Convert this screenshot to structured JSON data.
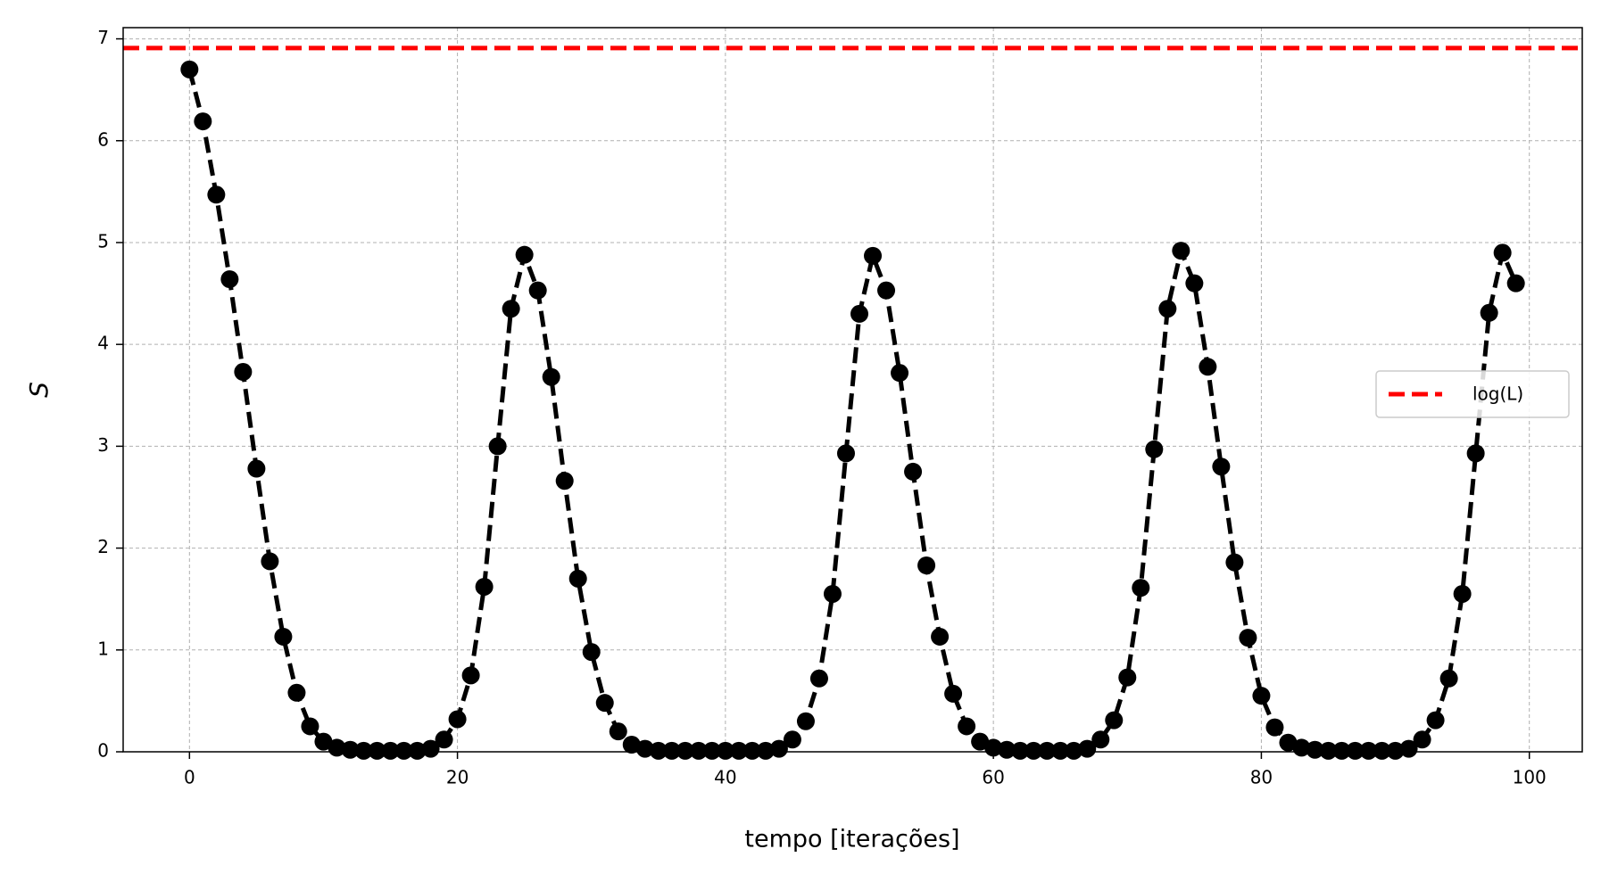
{
  "chart_data": {
    "type": "line",
    "xlabel": "tempo [iterações]",
    "ylabel": "S",
    "x": [
      0,
      1,
      2,
      3,
      4,
      5,
      6,
      7,
      8,
      9,
      10,
      11,
      12,
      13,
      14,
      15,
      16,
      17,
      18,
      19,
      20,
      21,
      22,
      23,
      24,
      25,
      26,
      27,
      28,
      29,
      30,
      31,
      32,
      33,
      34,
      35,
      36,
      37,
      38,
      39,
      40,
      41,
      42,
      43,
      44,
      45,
      46,
      47,
      48,
      49,
      50,
      51,
      52,
      53,
      54,
      55,
      56,
      57,
      58,
      59,
      60,
      61,
      62,
      63,
      64,
      65,
      66,
      67,
      68,
      69,
      70,
      71,
      72,
      73,
      74,
      75,
      76,
      77,
      78,
      79,
      80,
      81,
      82,
      83,
      84,
      85,
      86,
      87,
      88,
      89,
      90,
      91,
      92,
      93,
      94,
      95,
      96,
      97,
      98,
      99
    ],
    "series": [
      {
        "color": "#000000",
        "values": [
          6.7,
          6.19,
          5.47,
          4.64,
          3.73,
          2.78,
          1.87,
          1.13,
          0.58,
          0.25,
          0.1,
          0.04,
          0.02,
          0.01,
          0.01,
          0.01,
          0.01,
          0.01,
          0.03,
          0.12,
          0.32,
          0.75,
          1.62,
          3.0,
          4.35,
          4.88,
          4.53,
          3.68,
          2.66,
          1.7,
          0.98,
          0.48,
          0.2,
          0.07,
          0.03,
          0.01,
          0.01,
          0.01,
          0.01,
          0.01,
          0.01,
          0.01,
          0.01,
          0.01,
          0.03,
          0.12,
          0.3,
          0.72,
          1.55,
          2.93,
          4.3,
          4.87,
          4.53,
          3.72,
          2.75,
          1.83,
          1.13,
          0.57,
          0.25,
          0.1,
          0.04,
          0.02,
          0.01,
          0.01,
          0.01,
          0.01,
          0.01,
          0.03,
          0.12,
          0.31,
          0.73,
          1.61,
          2.97,
          4.35,
          4.92,
          4.6,
          3.78,
          2.8,
          1.86,
          1.12,
          0.55,
          0.24,
          0.09,
          0.04,
          0.02,
          0.01,
          0.01,
          0.01,
          0.01,
          0.01,
          0.01,
          0.03,
          0.12,
          0.31,
          0.72,
          1.55,
          2.93,
          4.31,
          4.9,
          4.6
        ]
      }
    ],
    "hlines": [
      {
        "value": 6.91,
        "label": "log(L)",
        "color": "#ff0000"
      }
    ],
    "xlim": [
      -4.95,
      103.95
    ],
    "ylim": [
      0,
      7.11
    ],
    "xticks": [
      0,
      20,
      40,
      60,
      80,
      100
    ],
    "yticks": [
      0,
      1,
      2,
      3,
      4,
      5,
      6,
      7
    ],
    "grid": true,
    "legend": "right"
  }
}
